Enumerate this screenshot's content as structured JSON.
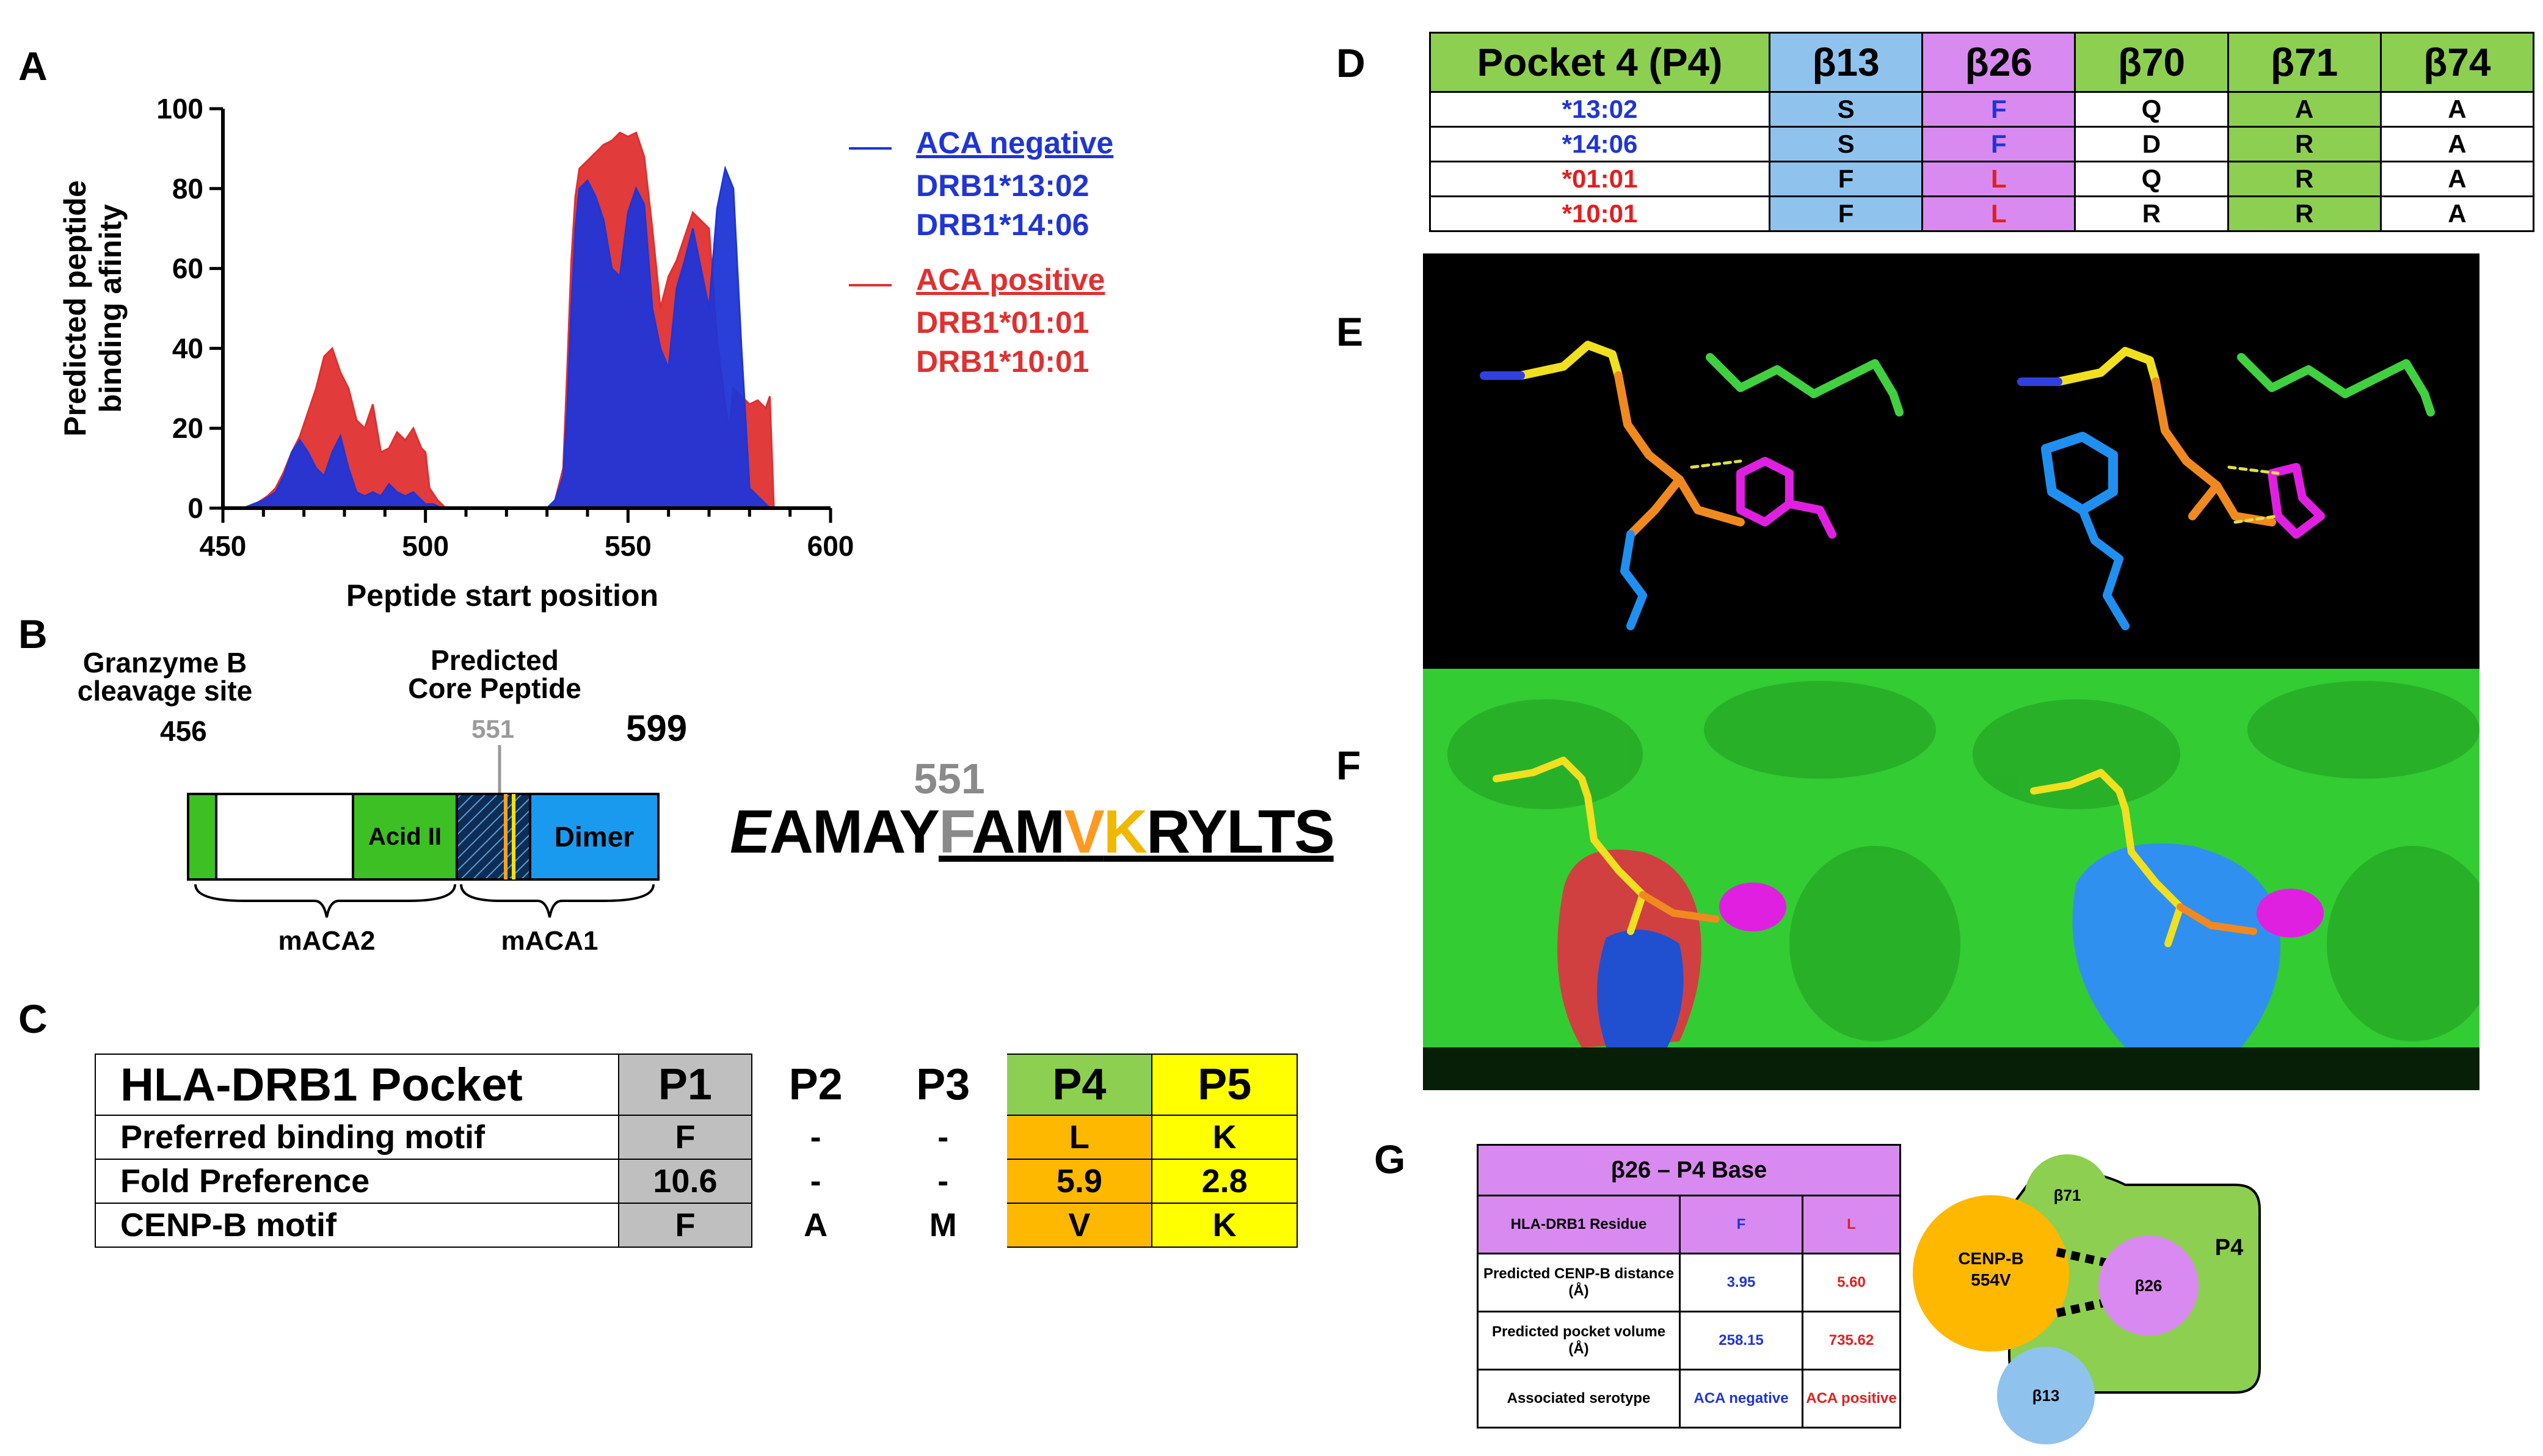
{
  "panels": {
    "A": "A",
    "B": "B",
    "C": "C",
    "D": "D",
    "E": "E",
    "F": "F",
    "G": "G"
  },
  "colors": {
    "aca_negative": "#1f35d6",
    "aca_positive": "#e03030",
    "green": "#8dcf50",
    "blue": "#8fc3ee",
    "purple": "#d98af0",
    "orange": "#ffb800",
    "yellow": "#ffff00",
    "gray": "#bfbfbf"
  },
  "chart_data": {
    "type": "area",
    "xlabel": "Peptide start position",
    "ylabel_lines": [
      "Predicted peptide",
      "binding afinity"
    ],
    "xlim": [
      450,
      600
    ],
    "ylim": [
      0,
      100
    ],
    "xticks": [
      450,
      500,
      550,
      600
    ],
    "yticks": [
      0,
      20,
      40,
      60,
      80,
      100
    ],
    "series": [
      {
        "name": "ACA positive",
        "alleles": [
          "DRB1*01:01",
          "DRB1*10:01"
        ],
        "color": "#e03030",
        "x": [
          455,
          458,
          461,
          463,
          465,
          467,
          469,
          471,
          473,
          475,
          477,
          479,
          481,
          483,
          485,
          487,
          489,
          491,
          493,
          495,
          497,
          499,
          500,
          501,
          503,
          505,
          530,
          532,
          534,
          535,
          536,
          537,
          538,
          540,
          542,
          544,
          546,
          548,
          550,
          552,
          554,
          556,
          558,
          560,
          562,
          564,
          566,
          568,
          570,
          572,
          574,
          575,
          576,
          578,
          580,
          582,
          584,
          585,
          586
        ],
        "y": [
          0,
          1,
          3,
          5,
          9,
          14,
          18,
          24,
          30,
          38,
          40,
          34,
          30,
          22,
          20,
          26,
          14,
          15,
          19,
          17,
          20,
          15,
          14,
          5,
          2,
          0,
          0,
          2,
          10,
          35,
          62,
          78,
          85,
          87,
          89,
          91,
          92,
          94,
          93,
          94,
          88,
          70,
          50,
          58,
          62,
          68,
          74,
          72,
          70,
          42,
          26,
          20,
          30,
          28,
          26,
          27,
          25,
          28,
          0
        ]
      },
      {
        "name": "ACA negative",
        "alleles": [
          "DRB1*13:02",
          "DRB1*14:06"
        ],
        "color": "#1f35d6",
        "x": [
          455,
          460,
          463,
          465,
          467,
          469,
          471,
          473,
          475,
          477,
          479,
          481,
          483,
          485,
          487,
          489,
          491,
          493,
          495,
          497,
          499,
          500,
          502,
          504,
          505,
          530,
          532,
          534,
          535,
          536,
          537,
          538,
          540,
          542,
          544,
          546,
          548,
          550,
          552,
          554,
          556,
          558,
          560,
          562,
          564,
          566,
          568,
          570,
          572,
          574,
          576,
          578,
          580,
          582,
          584,
          585
        ],
        "y": [
          0,
          2,
          4,
          8,
          14,
          17,
          14,
          10,
          8,
          14,
          18,
          10,
          4,
          3,
          4,
          3,
          6,
          4,
          3,
          4,
          2,
          1,
          1,
          0,
          0,
          0,
          2,
          8,
          25,
          50,
          70,
          80,
          82,
          78,
          72,
          60,
          58,
          74,
          80,
          76,
          50,
          40,
          35,
          55,
          62,
          70,
          60,
          50,
          75,
          85,
          80,
          40,
          5,
          3,
          1,
          0
        ]
      }
    ]
  },
  "legend": {
    "negative_title": "ACA negative",
    "negative_alleles": [
      "DRB1*13:02",
      "DRB1*14:06"
    ],
    "positive_title": "ACA positive",
    "positive_alleles": [
      "DRB1*01:01",
      "DRB1*10:01"
    ]
  },
  "panelB": {
    "granzyme_line1": "Granzyme B",
    "granzyme_line2": "cleavage site",
    "pos_start": "456",
    "core_line1": "Predicted",
    "core_line2": "Core Peptide",
    "pos_core": "551",
    "pos_end": "599",
    "acid_label": "Acid II",
    "dimer_label": "Dimer",
    "maca2": "mACA2",
    "maca1": "mACA1",
    "seq_pos": "551",
    "seq_first": "E",
    "seq_a": "AMAY",
    "seq_f": "F",
    "seq_am": "AM",
    "seq_v": "V",
    "seq_k": "K",
    "seq_rest": "RYLTS"
  },
  "tableC": {
    "header": [
      "HLA-DRB1 Pocket",
      "P1",
      "P2",
      "P3",
      "P4",
      "P5"
    ],
    "rows": [
      [
        "Preferred binding motif",
        "F",
        "-",
        "-",
        "L",
        "K"
      ],
      [
        "Fold Preference",
        "10.6",
        "-",
        "-",
        "5.9",
        "2.8"
      ],
      [
        "CENP-B motif",
        "F",
        "A",
        "M",
        "V",
        "K"
      ]
    ]
  },
  "tableD": {
    "header": [
      "Pocket 4 (P4)",
      "β13",
      "β26",
      "β70",
      "β71",
      "β74"
    ],
    "rows": [
      {
        "allele": "*13:02",
        "cells": [
          "S",
          "F",
          "Q",
          "A",
          "A"
        ]
      },
      {
        "allele": "*14:06",
        "cells": [
          "S",
          "F",
          "D",
          "R",
          "A"
        ]
      },
      {
        "allele": "*01:01",
        "cells": [
          "F",
          "L",
          "Q",
          "R",
          "A"
        ]
      },
      {
        "allele": "*10:01",
        "cells": [
          "F",
          "L",
          "R",
          "R",
          "A"
        ]
      }
    ]
  },
  "tableG": {
    "title": "β26 – P4 Base",
    "col1": "HLA-DRB1 Residue",
    "col2": "F",
    "col3": "L",
    "rows": [
      [
        "Predicted CENP-B distance (Å)",
        "3.95",
        "5.60"
      ],
      [
        "Predicted pocket volume (Å)",
        "258.15",
        "735.62"
      ],
      [
        "Associated serotype",
        "ACA negative",
        "ACA positive"
      ]
    ]
  },
  "diagramG": {
    "b71": "β71",
    "p4": "P4",
    "cenpb_line1": "CENP-B",
    "cenpb_line2": "554V",
    "b26": "β26",
    "b13": "β13"
  }
}
